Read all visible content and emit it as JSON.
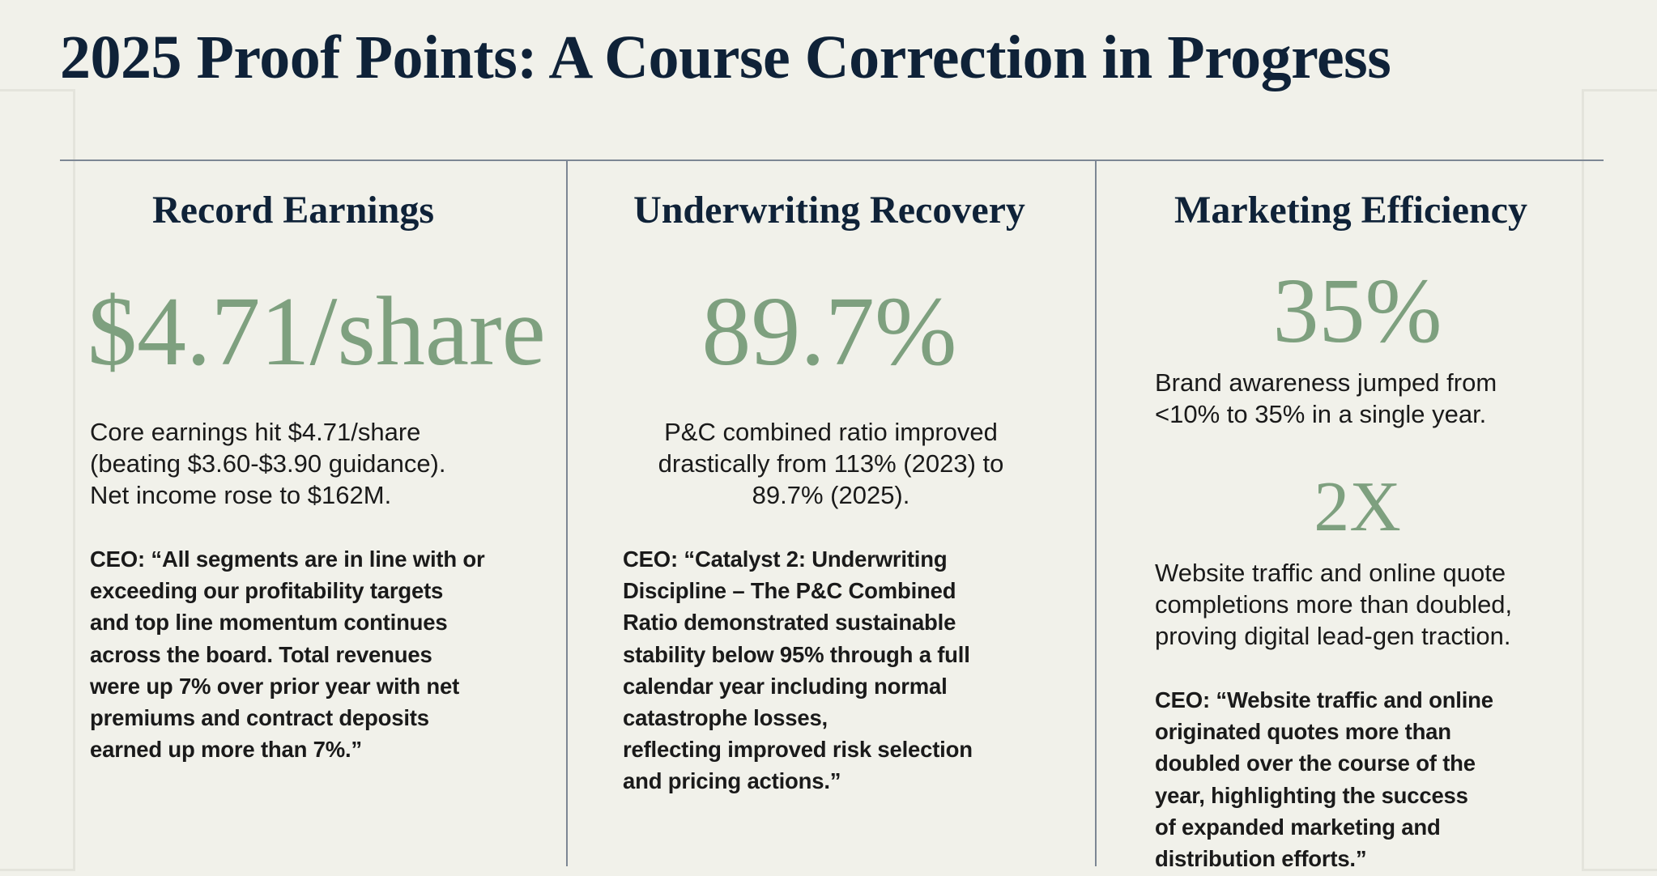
{
  "title": "2025 Proof Points: A Course Correction in Progress",
  "columns": [
    {
      "heading": "Record Earnings",
      "highlights": [
        {
          "metric": "$4.71/share",
          "description": "Core earnings hit $4.71/share\n(beating $3.60-$3.90 guidance).\nNet income rose to $162M."
        }
      ],
      "quote": "CEO: “All segments are in line with or\nexceeding our profitability targets\nand top line momentum continues\nacross the board. Total revenues\nwere up 7% over prior year with net\npremiums and contract deposits\nearned up more than 7%.”"
    },
    {
      "heading": "Underwriting Recovery",
      "highlights": [
        {
          "metric": "89.7%",
          "description": "P&C combined ratio improved\ndrastically from 113% (2023) to\n89.7% (2025)."
        }
      ],
      "quote": "CEO: “Catalyst 2: Underwriting\nDiscipline – The P&C Combined\nRatio demonstrated sustainable\nstability below 95% through a full\ncalendar year including normal\ncatastrophe losses,\nreflecting improved risk selection\nand pricing actions.”"
    },
    {
      "heading": "Marketing Efficiency",
      "highlights": [
        {
          "metric": "35%",
          "description": "Brand awareness jumped from\n<10% to 35% in a single year."
        },
        {
          "metric": "2X",
          "description": "Website traffic and online quote\ncompletions more than doubled,\nproving digital lead-gen traction."
        }
      ],
      "quote": "CEO: “Website traffic and online\noriginated quotes more than\ndoubled over the course of the\nyear, highlighting the success\nof expanded marketing and\ndistribution efforts.”"
    }
  ]
}
